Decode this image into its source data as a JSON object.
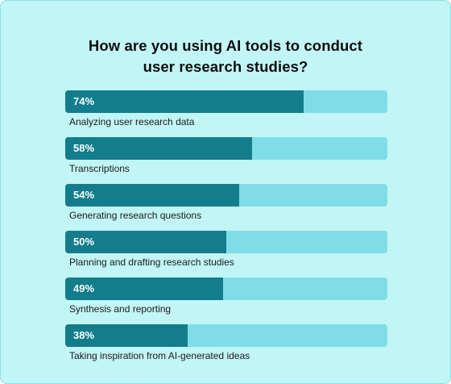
{
  "chart_data": {
    "type": "bar",
    "orientation": "horizontal",
    "title": "How are you using AI tools to conduct user research studies?",
    "title_lines": [
      "How are you using AI tools to conduct",
      "user research studies?"
    ],
    "xlim": [
      0,
      100
    ],
    "categories": [
      "Analyzing user research data",
      "Transcriptions",
      "Generating research questions",
      "Planning and drafting research studies",
      "Synthesis and reporting",
      "Taking inspiration from AI-generated ideas"
    ],
    "values": [
      74,
      58,
      54,
      50,
      49,
      38
    ],
    "value_labels": [
      "74%",
      "58%",
      "54%",
      "50%",
      "49%",
      "38%"
    ],
    "grid": false,
    "colors": {
      "background": "#c2f5f5",
      "bar_fill": "#137d8c",
      "bar_track": "#7fdde8",
      "value_text": "#ffffff",
      "label_text": "#1a1a1a"
    }
  }
}
